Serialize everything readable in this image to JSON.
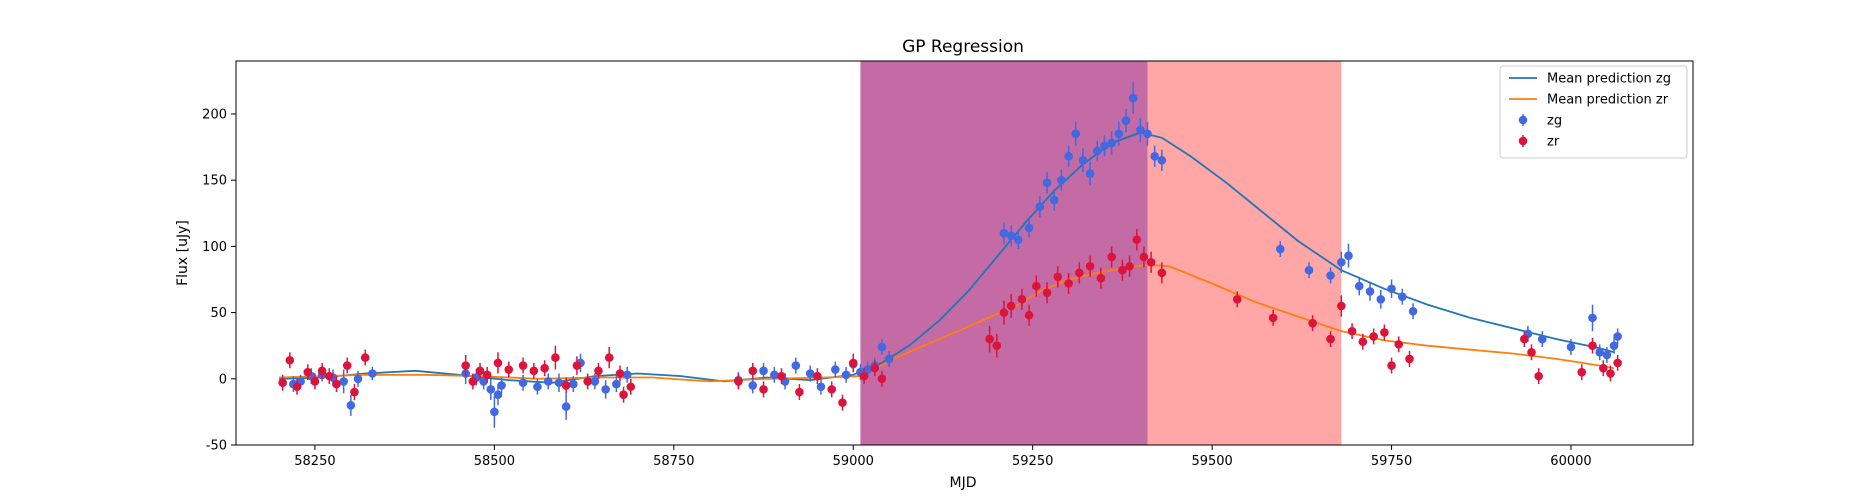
{
  "chart_data": {
    "type": "scatter",
    "title": "GP Regression",
    "xlabel": "MJD",
    "ylabel": "Flux [uJy]",
    "xlim": [
      58140,
      60170
    ],
    "ylim": [
      -50,
      240
    ],
    "xticks": [
      58250,
      58500,
      58750,
      59000,
      59250,
      59500,
      59750,
      60000
    ],
    "yticks": [
      -50,
      0,
      50,
      100,
      150,
      200
    ],
    "grid": false,
    "legend_position": "top-right",
    "regions": [
      {
        "x_start": 59010,
        "x_end": 59410,
        "color": "#c46aa5"
      },
      {
        "x_start": 59410,
        "x_end": 59680,
        "color": "#ffa6a6"
      }
    ],
    "series": [
      {
        "name": "Mean prediction zg",
        "kind": "line",
        "color": "#1f77b4",
        "x": [
          58200,
          58260,
          58320,
          58390,
          58450,
          58520,
          58580,
          58640,
          58700,
          58760,
          58820,
          58880,
          58940,
          59000,
          59040,
          59080,
          59120,
          59160,
          59200,
          59240,
          59280,
          59320,
          59360,
          59400,
          59430,
          59470,
          59520,
          59570,
          59620,
          59680,
          59740,
          59800,
          59860,
          59920,
          59980,
          60040,
          60060
        ],
        "y": [
          0,
          1,
          4,
          6,
          3,
          -1,
          -3,
          2,
          4,
          2,
          -2,
          1,
          -1,
          3,
          12,
          26,
          44,
          66,
          92,
          118,
          142,
          162,
          178,
          186,
          182,
          168,
          148,
          126,
          104,
          82,
          68,
          56,
          46,
          38,
          30,
          23,
          20
        ]
      },
      {
        "name": "Mean prediction zr",
        "kind": "line",
        "color": "#ff7f0e",
        "x": [
          58200,
          58260,
          58320,
          58400,
          58480,
          58560,
          58640,
          58720,
          58800,
          58880,
          58960,
          59010,
          59060,
          59120,
          59180,
          59230,
          59260,
          59300,
          59340,
          59380,
          59410,
          59440,
          59500,
          59560,
          59620,
          59680,
          59740,
          59800,
          59860,
          59920,
          59980,
          60040,
          60060
        ],
        "y": [
          1,
          2,
          3,
          3,
          2,
          0,
          1,
          1,
          -2,
          0,
          1,
          2,
          16,
          30,
          44,
          56,
          66,
          75,
          80,
          84,
          86,
          85,
          72,
          58,
          47,
          36,
          29,
          25,
          22,
          19,
          15,
          10,
          8
        ]
      },
      {
        "name": "zg",
        "kind": "errorbar",
        "color": "#4169e1",
        "x": [
          58220,
          58230,
          58245,
          58260,
          58275,
          58290,
          58300,
          58310,
          58330,
          58460,
          58475,
          58485,
          58495,
          58500,
          58505,
          58510,
          58540,
          58560,
          58575,
          58590,
          58600,
          58610,
          58620,
          58640,
          58655,
          58670,
          58685,
          58840,
          58860,
          58875,
          58890,
          58905,
          58920,
          58940,
          58955,
          58975,
          58990,
          59000,
          59010,
          59020,
          59030,
          59040,
          59050,
          59210,
          59220,
          59230,
          59245,
          59260,
          59270,
          59280,
          59290,
          59300,
          59310,
          59320,
          59330,
          59340,
          59350,
          59360,
          59370,
          59380,
          59390,
          59400,
          59410,
          59420,
          59430,
          59595,
          59635,
          59665,
          59680,
          59690,
          59705,
          59720,
          59735,
          59750,
          59765,
          59780,
          59940,
          59960,
          60000,
          60030,
          60040,
          60050,
          60060,
          60065
        ],
        "y": [
          -4,
          -2,
          2,
          3,
          1,
          -2,
          -20,
          0,
          4,
          4,
          1,
          -2,
          -8,
          -25,
          -12,
          -5,
          -3,
          -6,
          -2,
          -3,
          -21,
          -4,
          12,
          -2,
          -8,
          -4,
          3,
          -1,
          -5,
          6,
          3,
          -2,
          10,
          4,
          -6,
          7,
          3,
          11,
          5,
          7,
          10,
          24,
          15,
          110,
          108,
          105,
          114,
          130,
          148,
          135,
          150,
          168,
          185,
          165,
          155,
          172,
          176,
          178,
          185,
          195,
          212,
          188,
          185,
          168,
          165,
          98,
          82,
          78,
          88,
          93,
          70,
          66,
          60,
          68,
          62,
          51,
          34,
          30,
          24,
          46,
          20,
          18,
          25,
          32
        ],
        "yerr": [
          6,
          5,
          6,
          5,
          6,
          9,
          8,
          6,
          5,
          8,
          6,
          6,
          8,
          12,
          8,
          6,
          6,
          6,
          6,
          7,
          10,
          6,
          7,
          6,
          7,
          6,
          6,
          6,
          6,
          6,
          6,
          6,
          6,
          6,
          6,
          6,
          6,
          6,
          6,
          6,
          6,
          6,
          6,
          8,
          8,
          7,
          7,
          8,
          8,
          8,
          8,
          8,
          9,
          9,
          9,
          8,
          8,
          9,
          9,
          9,
          12,
          9,
          9,
          8,
          8,
          6,
          6,
          6,
          8,
          9,
          7,
          7,
          7,
          7,
          6,
          6,
          6,
          6,
          6,
          10,
          6,
          6,
          6,
          6
        ]
      },
      {
        "name": "zr",
        "kind": "errorbar",
        "color": "#dc143c",
        "x": [
          58205,
          58215,
          58225,
          58240,
          58250,
          58260,
          58270,
          58280,
          58295,
          58305,
          58320,
          58460,
          58470,
          58480,
          58490,
          58505,
          58520,
          58540,
          58555,
          58570,
          58585,
          58600,
          58615,
          58630,
          58645,
          58660,
          58675,
          58680,
          58690,
          58840,
          58860,
          58875,
          58900,
          58925,
          58950,
          58970,
          58985,
          59000,
          59015,
          59030,
          59040,
          59190,
          59200,
          59210,
          59220,
          59235,
          59245,
          59255,
          59270,
          59285,
          59300,
          59315,
          59330,
          59345,
          59360,
          59375,
          59385,
          59395,
          59405,
          59415,
          59430,
          59535,
          59585,
          59640,
          59665,
          59680,
          59695,
          59710,
          59725,
          59740,
          59750,
          59760,
          59775,
          59935,
          59945,
          59955,
          60015,
          60030,
          60045,
          60055,
          60065
        ],
        "y": [
          -3,
          14,
          -6,
          5,
          -2,
          6,
          2,
          -4,
          10,
          -10,
          16,
          10,
          -2,
          6,
          3,
          12,
          7,
          10,
          6,
          8,
          16,
          -5,
          10,
          -2,
          6,
          16,
          4,
          -12,
          -6,
          -2,
          6,
          -8,
          2,
          -10,
          2,
          -8,
          -18,
          12,
          2,
          8,
          0,
          30,
          25,
          50,
          55,
          60,
          48,
          70,
          65,
          77,
          72,
          80,
          85,
          76,
          92,
          82,
          85,
          105,
          92,
          88,
          80,
          60,
          46,
          42,
          30,
          55,
          36,
          28,
          32,
          35,
          10,
          26,
          15,
          30,
          20,
          2,
          5,
          25,
          8,
          4,
          12
        ],
        "yerr": [
          6,
          6,
          6,
          6,
          6,
          6,
          6,
          6,
          6,
          6,
          6,
          8,
          6,
          6,
          6,
          8,
          6,
          6,
          6,
          6,
          9,
          6,
          7,
          6,
          6,
          8,
          6,
          6,
          6,
          6,
          6,
          6,
          6,
          6,
          6,
          6,
          6,
          7,
          6,
          6,
          6,
          10,
          9,
          9,
          9,
          8,
          8,
          8,
          8,
          8,
          8,
          8,
          8,
          8,
          8,
          8,
          8,
          8,
          8,
          8,
          8,
          6,
          6,
          6,
          6,
          8,
          6,
          6,
          6,
          6,
          6,
          6,
          6,
          6,
          6,
          6,
          6,
          6,
          6,
          6,
          6
        ]
      }
    ]
  }
}
